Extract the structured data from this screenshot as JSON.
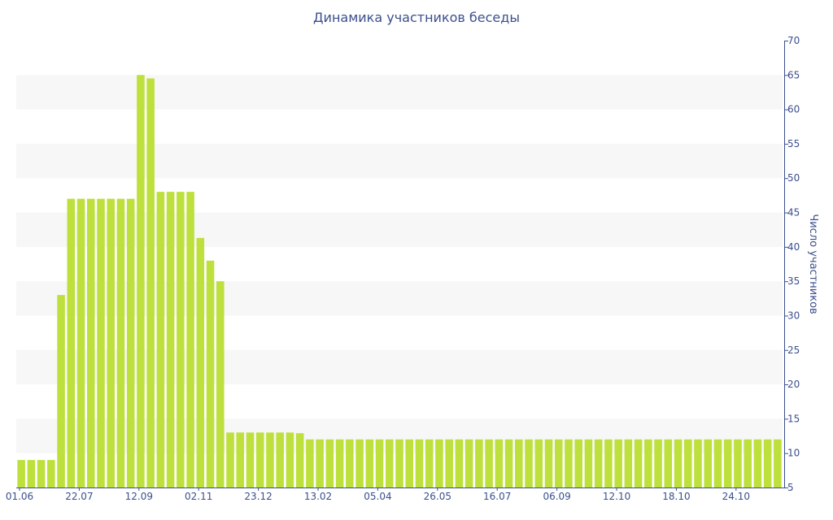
{
  "chart_data": {
    "type": "bar",
    "title": "Динамика участников беседы",
    "xlabel": "",
    "ylabel": "Число участников",
    "ylim": [
      5,
      70
    ],
    "y_ticks": [
      5,
      10,
      15,
      20,
      25,
      30,
      35,
      40,
      45,
      50,
      55,
      60,
      65,
      70
    ],
    "y_axis_side": "right",
    "grid": "alternating horizontal bands",
    "bar_color": "#bde03c",
    "band_color": "#f7f7f7",
    "text_color": "#3b4f8c",
    "x_tick_labels": [
      {
        "index": 0,
        "label": "01.06"
      },
      {
        "index": 6,
        "label": "22.07"
      },
      {
        "index": 12,
        "label": "12.09"
      },
      {
        "index": 18,
        "label": "02.11"
      },
      {
        "index": 24,
        "label": "23.12"
      },
      {
        "index": 30,
        "label": "13.02"
      },
      {
        "index": 36,
        "label": "05.04"
      },
      {
        "index": 42,
        "label": "26.05"
      },
      {
        "index": 48,
        "label": "16.07"
      },
      {
        "index": 54,
        "label": "06.09"
      },
      {
        "index": 60,
        "label": "12.10"
      },
      {
        "index": 66,
        "label": "18.10"
      },
      {
        "index": 72,
        "label": "24.10"
      }
    ],
    "values": [
      9,
      9,
      9,
      9,
      33,
      47,
      47,
      47,
      47,
      47,
      47,
      47,
      65,
      64.5,
      48,
      48,
      48,
      48,
      41.3,
      38,
      35,
      13,
      13,
      13,
      13,
      13,
      13,
      13,
      12.9,
      12,
      12,
      12,
      12,
      12,
      12,
      12,
      12,
      12,
      12,
      12,
      12,
      12,
      12,
      12,
      12,
      12,
      12,
      12,
      12,
      12,
      12,
      12,
      12,
      12,
      12,
      12,
      12,
      12,
      12,
      12,
      12,
      12,
      12,
      12,
      12,
      12,
      12,
      12,
      12,
      12,
      12,
      12,
      12,
      12,
      12,
      12,
      12
    ]
  }
}
